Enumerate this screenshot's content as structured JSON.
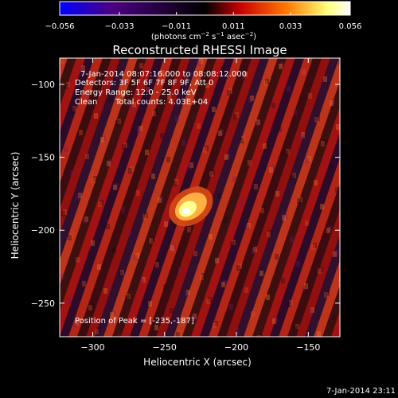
{
  "chart_data": {
    "type": "heatmap",
    "title": "Reconstructed RHESSI Image",
    "xlabel": "Heliocentric X (arcsec)",
    "ylabel": "Heliocentric Y (arcsec)",
    "xlim": [
      -323,
      -128
    ],
    "ylim": [
      -273,
      -82
    ],
    "x_ticks": [
      -300,
      -250,
      -200,
      -150
    ],
    "x_tick_labels": [
      "−300",
      "−250",
      "−200",
      "−150"
    ],
    "y_ticks": [
      -100,
      -150,
      -200,
      -250
    ],
    "y_tick_labels": [
      "−100",
      "−150",
      "−200",
      "−250"
    ],
    "annotations": {
      "time_range": "7-Jan-2014 08:07:16.000 to 08:08:12.000",
      "detectors": "Detectors: 3F 5F 6F 7F 8F 9F, Att 0",
      "energy_range": "Energy Range: 12.0 - 25.0 keV",
      "method": "Clean",
      "total_counts": "Total counts: 4.03E+04",
      "peak_position": "Position of Peak = [-235,-187]"
    },
    "peak": [
      -235,
      -187
    ],
    "colorbar": {
      "min": -0.056,
      "max": 0.056,
      "tick_values": [
        -0.056,
        -0.033,
        -0.011,
        0.011,
        0.033,
        0.056
      ],
      "tick_labels": [
        "−0.056",
        "−0.033",
        "−0.011",
        "0.011",
        "0.033",
        "0.056"
      ],
      "units_label": "(photons cm",
      "units_sup1": "−2",
      "units_mid": " s",
      "units_sup2": "−1",
      "units_end": " asec",
      "units_sup3": "−2",
      "units_close": ")",
      "colors": [
        "#0000ff",
        "#4b0082",
        "#000000",
        "#c80000",
        "#ff7800",
        "#ffff78",
        "#ffffff"
      ]
    },
    "grid": false
  },
  "footer": {
    "timestamp": "7-Jan-2014 23:11"
  }
}
